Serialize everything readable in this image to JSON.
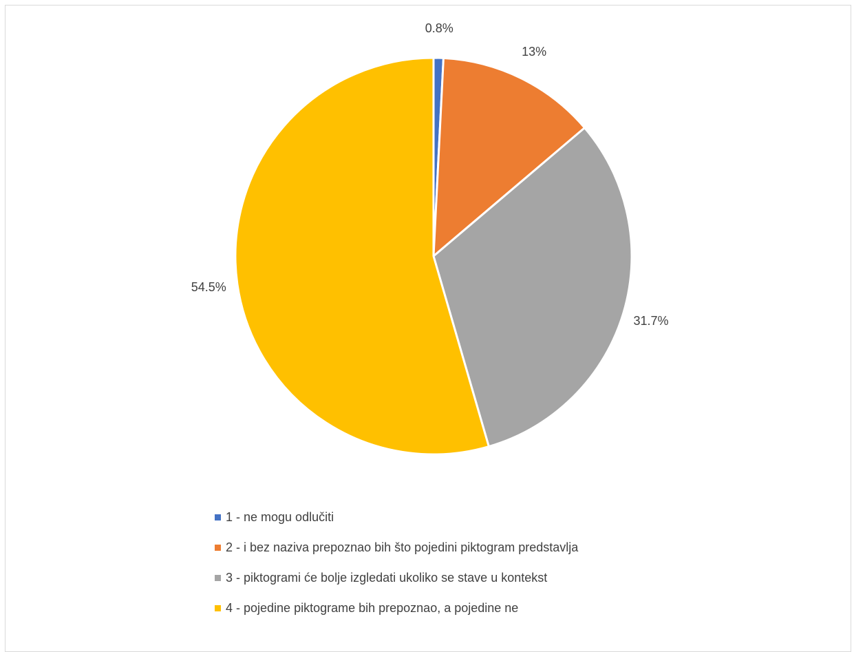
{
  "chart_data": {
    "type": "pie",
    "title": "",
    "legend_position": "bottom",
    "start_angle_deg": 0,
    "direction": "clockwise",
    "label_position": "outside",
    "slices": [
      {
        "label": "1 - ne mogu odlučiti",
        "value": 0.8,
        "data_label": "0.8%",
        "color": "#4472C4"
      },
      {
        "label": "2 - i bez naziva prepoznao bih što pojedini piktogram predstavlja",
        "value": 13,
        "data_label": "13%",
        "color": "#ED7D31"
      },
      {
        "label": "3 - piktogrami će bolje izgledati ukoliko se stave u kontekst",
        "value": 31.7,
        "data_label": "31.7%",
        "color": "#A5A5A5"
      },
      {
        "label": "4 - pojedine piktograme bih prepoznao, a pojedine ne",
        "value": 54.5,
        "data_label": "54.5%",
        "color": "#FFC000"
      }
    ]
  }
}
